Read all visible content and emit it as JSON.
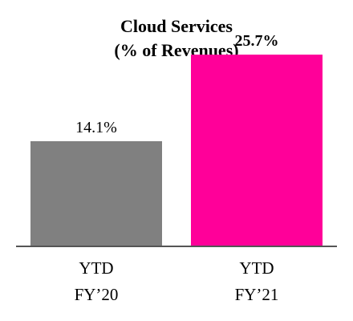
{
  "chart_data": {
    "type": "bar",
    "title_lines": [
      "Cloud Services",
      "(% of Revenues)"
    ],
    "xlabel": "",
    "ylabel": "",
    "ylim": [
      0,
      27
    ],
    "grid": false,
    "legend": "none",
    "categories": [
      [
        "YTD",
        "FY’20"
      ],
      [
        "YTD",
        "FY’21"
      ]
    ],
    "values": [
      14.1,
      25.7
    ],
    "value_labels": [
      "14.1%",
      "25.7%"
    ],
    "value_label_bold": [
      false,
      true
    ],
    "colors": [
      "#808080",
      "#ff0099"
    ],
    "axis_color": "#555555"
  }
}
